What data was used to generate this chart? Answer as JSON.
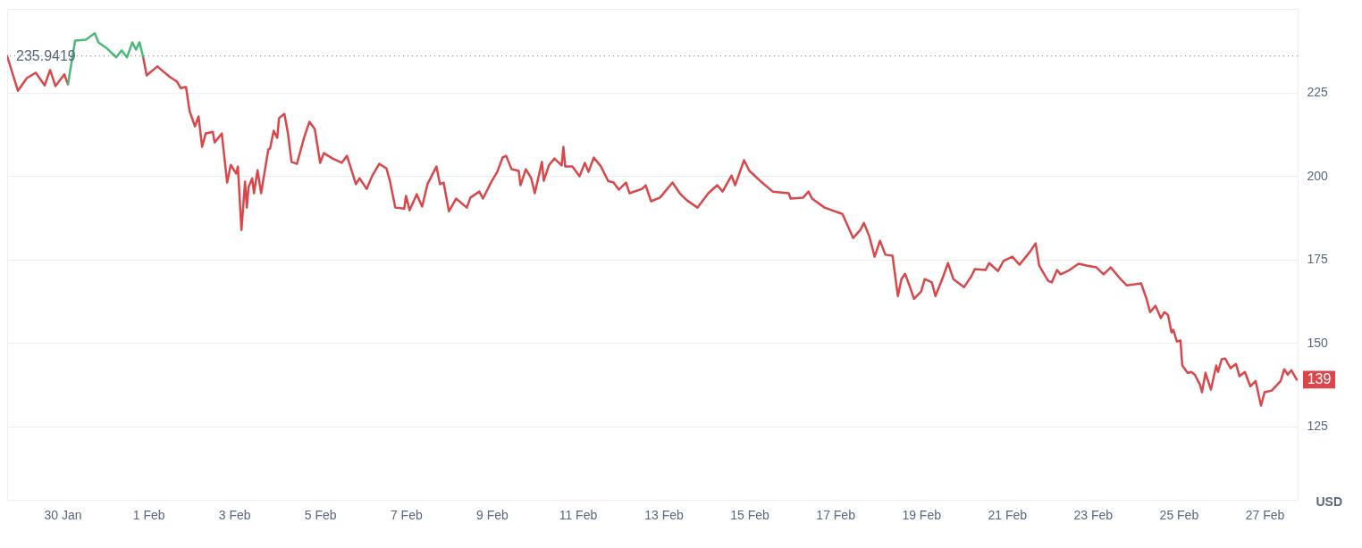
{
  "chart_data": {
    "type": "line",
    "ylabel": "USD",
    "x": [
      "--01-28T17:00",
      "--01-28T23:00",
      "--01-29T04:00",
      "--01-29T09:00",
      "--01-29T14:00",
      "--01-29T17:00",
      "--01-29T20:00",
      "--01-30T01:00",
      "--01-30T03:00",
      "--01-30T07:00",
      "--01-30T13:00",
      "--01-30T18:00",
      "--01-30T20:00",
      "--01-31T01:00",
      "--01-31T06:00",
      "--01-31T09:00",
      "--01-31T12:00",
      "--01-31T15:00",
      "--01-31T17:00",
      "--01-31T19:00",
      "--01-31T21:00",
      "--01-31T23:00",
      "--02-01T05:00",
      "--02-01T08:00",
      "--02-01T12:00",
      "--02-01T16:00",
      "--02-01T18:00",
      "--02-01T21:00",
      "--02-01T23:00",
      "--02-02T02:00",
      "--02-02T04:00",
      "--02-02T06:00",
      "--02-02T08:00",
      "--02-02T12:00",
      "--02-02T13:00",
      "--02-02T17:00",
      "--02-02T20:00",
      "--02-02T22:00",
      "--02-03T01:00",
      "--02-03T02:00",
      "--02-03T04:00",
      "--02-03T06:00",
      "--02-03T07:00",
      "--02-03T08:00",
      "--02-03T10:00",
      "--02-03T11:00",
      "--02-03T13:00",
      "--02-03T15:00",
      "--02-03T19:00",
      "--02-03T20:00",
      "--02-03T22:00",
      "--02-04T00:00",
      "--02-04T01:00",
      "--02-04T04:00",
      "--02-04T06:00",
      "--02-04T08:00",
      "--02-04T11:00",
      "--02-04T15:00",
      "--02-04T18:00",
      "--02-04T21:00",
      "--02-05T00:00",
      "--02-05T02:00",
      "--02-05T07:00",
      "--02-05T12:00",
      "--02-05T15:00",
      "--02-05T20:00",
      "--02-05T22:00",
      "--02-06T02:00",
      "--02-06T05:00",
      "--02-06T09:00",
      "--02-06T13:00",
      "--02-06T15:00",
      "--02-06T18:00",
      "--02-06T23:00",
      "--02-07T00:00",
      "--02-07T02:00",
      "--02-07T06:00",
      "--02-07T09:00",
      "--02-07T12:00",
      "--02-07T17:00",
      "--02-07T19:00",
      "--02-07T21:00",
      "--02-08T00:00",
      "--02-08T04:00",
      "--02-08T10:00",
      "--02-08T12:00",
      "--02-08T17:00",
      "--02-08T19:00",
      "--02-09T00:00",
      "--02-09T03:00",
      "--02-09T06:00",
      "--02-09T08:00",
      "--02-09T11:00",
      "--02-09T15:00",
      "--02-09T16:00",
      "--02-09T19:00",
      "--02-09T22:00",
      "--02-10T00:00",
      "--02-10T04:00",
      "--02-10T05:00",
      "--02-10T08:00",
      "--02-10T11:00",
      "--02-10T15:00",
      "--02-10T16:00",
      "--02-10T17:00",
      "--02-10T21:00",
      "--02-11T01:00",
      "--02-11T04:00",
      "--02-11T06:00",
      "--02-11T09:00",
      "--02-11T13:00",
      "--02-11T17:00",
      "--02-11T20:00",
      "--02-11T23:00",
      "--02-12T03:00",
      "--02-12T05:00",
      "--02-12T12:00",
      "--02-12T14:00",
      "--02-12T17:00",
      "--02-12T22:00",
      "--02-13T05:00",
      "--02-13T09:00",
      "--02-13T13:00",
      "--02-13T19:00",
      "--02-14T01:00",
      "--02-14T06:00",
      "--02-14T09:00",
      "--02-14T14:00",
      "--02-14T16:00",
      "--02-14T21:00",
      "--02-15T00:00",
      "--02-15T06:00",
      "--02-15T13:00",
      "--02-15T22:00",
      "--02-15T23:00",
      "--02-16T06:00",
      "--02-16T09:00",
      "--02-16T11:00",
      "--02-16T18:00",
      "--02-17T04:00",
      "--02-17T08:00",
      "--02-17T10:00",
      "--02-17T14:00",
      "--02-17T16:00",
      "--02-17T19:00",
      "--02-17T22:00",
      "--02-18T01:00",
      "--02-18T04:00",
      "--02-18T08:00",
      "--02-18T11:00",
      "--02-18T13:00",
      "--02-18T15:00",
      "--02-18T18:00",
      "--02-18T20:00",
      "--02-19T00:00",
      "--02-19T02:00",
      "--02-19T06:00",
      "--02-19T08:00",
      "--02-19T12:00",
      "--02-19T15:00",
      "--02-19T18:00",
      "--02-20T00:00",
      "--02-20T04:00",
      "--02-20T06:00",
      "--02-20T12:00",
      "--02-20T14:00",
      "--02-20T19:00",
      "--02-20T22:00",
      "--02-21T03:00",
      "--02-21T07:00",
      "--02-21T13:00",
      "--02-21T16:00",
      "--02-21T18:00",
      "--02-21T23:00",
      "--02-22T01:00",
      "--02-22T04:00",
      "--02-22T06:00",
      "--02-22T11:00",
      "--02-22T16:00",
      "--02-22T21:00",
      "--02-23T02:00",
      "--02-23T06:00",
      "--02-23T10:00",
      "--02-23T15:00",
      "--02-23T19:00",
      "--02-24T03:00",
      "--02-24T06:00",
      "--02-24T08:00",
      "--02-24T11:00",
      "--02-24T14:00",
      "--02-24T16:00",
      "--02-24T18:00",
      "--02-24T20:00",
      "--02-24T21:00",
      "--02-24T23:00",
      "--02-25T01:00",
      "--02-25T02:00",
      "--02-25T05:00",
      "--02-25T07:00",
      "--02-25T09:00",
      "--02-25T12:00",
      "--02-25T13:00",
      "--02-25T15:00",
      "--02-25T18:00",
      "--02-25T21:00",
      "--02-25T22:00",
      "--02-26T00:00",
      "--02-26T02:00",
      "--02-26T05:00",
      "--02-26T08:00",
      "--02-26T10:00",
      "--02-26T13:00",
      "--02-26T16:00",
      "--02-26T19:00",
      "--02-26T22:00",
      "--02-27T00:00",
      "--02-27T04:00",
      "--02-27T09:00",
      "--02-27T11:00",
      "--02-27T13:00",
      "--02-27T15:00",
      "--02-27T18:00"
    ],
    "series": [
      {
        "color": "#d9474b",
        "values": [
          235.9,
          225.5,
          229.3,
          230.9,
          227.1,
          231.7,
          226.9,
          230.4,
          227.4,
          null,
          null,
          null,
          null,
          null,
          null,
          null,
          null,
          null,
          null,
          null,
          235.7,
          230.1,
          232.8,
          231.4,
          229.6,
          228.2,
          226.3,
          226.6,
          219.4,
          214.8,
          217.8,
          208.7,
          212.7,
          213.2,
          210.0,
          212.7,
          198.0,
          203.3,
          200.7,
          202.8,
          183.8,
          198.3,
          190.5,
          196.7,
          199.3,
          194.8,
          201.7,
          194.8,
          207.9,
          208.2,
          213.5,
          211.4,
          217.3,
          218.6,
          212.7,
          204.2,
          203.6,
          211.4,
          216.2,
          214.0,
          203.9,
          206.8,
          205.2,
          203.9,
          206.0,
          197.5,
          199.3,
          196.1,
          199.9,
          203.6,
          202.3,
          198.5,
          190.5,
          190.2,
          194.0,
          189.7,
          194.5,
          190.8,
          197.5,
          202.8,
          197.5,
          198.0,
          189.4,
          193.2,
          190.5,
          193.5,
          195.3,
          193.2,
          198.5,
          201.2,
          205.5,
          206.0,
          202.0,
          201.5,
          197.2,
          202.0,
          199.3,
          194.8,
          204.2,
          198.5,
          203.3,
          205.2,
          203.1,
          208.7,
          202.8,
          202.8,
          199.9,
          203.9,
          201.2,
          205.5,
          202.8,
          198.5,
          198.0,
          195.9,
          198.0,
          194.8,
          196.1,
          197.2,
          192.4,
          193.5,
          198.0,
          194.8,
          192.7,
          190.5,
          194.8,
          197.2,
          195.3,
          200.1,
          197.2,
          204.7,
          201.5,
          198.5,
          195.3,
          194.8,
          193.2,
          193.5,
          195.3,
          193.2,
          190.5,
          188.6,
          183.8,
          181.4,
          183.8,
          185.9,
          181.9,
          175.8,
          180.6,
          176.4,
          176.1,
          164.0,
          169.1,
          170.7,
          166.4,
          163.2,
          165.4,
          169.1,
          168.1,
          164.0,
          169.4,
          173.9,
          169.1,
          166.7,
          169.9,
          172.1,
          171.8,
          173.9,
          171.5,
          174.5,
          175.8,
          173.4,
          177.4,
          179.8,
          173.1,
          168.6,
          168.1,
          171.8,
          170.5,
          171.8,
          173.7,
          173.1,
          172.6,
          170.5,
          172.6,
          169.4,
          167.2,
          167.8,
          163.2,
          159.2,
          161.1,
          157.4,
          159.2,
          158.4,
          153.1,
          153.9,
          150.4,
          150.7,
          143.2,
          141.0,
          141.3,
          140.5,
          137.3,
          135.2,
          141.0,
          136.0,
          143.2,
          141.3,
          145.1,
          145.3,
          142.4,
          143.7,
          140.0,
          141.3,
          137.0,
          138.6,
          131.2,
          135.2,
          135.7,
          138.6,
          142.1,
          140.5,
          141.8,
          139
        ]
      },
      {
        "color": "#4cb979",
        "values": [
          null,
          null,
          null,
          null,
          null,
          null,
          null,
          null,
          227.4,
          240.5,
          240.8,
          242.7,
          240.0,
          238.1,
          235.5,
          237.6,
          235.5,
          240.0,
          237.8,
          240.0,
          235.7,
          null,
          null,
          null,
          null,
          null,
          null,
          null,
          null,
          null,
          null,
          null,
          null,
          null,
          null,
          null,
          null,
          null,
          null,
          null,
          null,
          null,
          null,
          null,
          null,
          null,
          null,
          null,
          null,
          null,
          null,
          null,
          null,
          null,
          null,
          null,
          null,
          null,
          null,
          null,
          null,
          null,
          null,
          null,
          null,
          null,
          null,
          null,
          null,
          null,
          null,
          null,
          null,
          null,
          null,
          null,
          null,
          null,
          null,
          null,
          null,
          null,
          null,
          null,
          null,
          null,
          null,
          null,
          null,
          null,
          null,
          null,
          null,
          null,
          null,
          null,
          null,
          null,
          null,
          null,
          null,
          null,
          null,
          null,
          null,
          null,
          null,
          null,
          null,
          null,
          null,
          null,
          null,
          null,
          null,
          null,
          null,
          null,
          null,
          null,
          null,
          null,
          null,
          null,
          null,
          null,
          null,
          null,
          null,
          null,
          null,
          null,
          null,
          null,
          null,
          null,
          null,
          null,
          null,
          null,
          null,
          null,
          null,
          null,
          null,
          null,
          null,
          null,
          null,
          null,
          null,
          null,
          null,
          null,
          null,
          null,
          null,
          null,
          null,
          null,
          null,
          null,
          null,
          null,
          null,
          null,
          null,
          null,
          null,
          null,
          null,
          null,
          null,
          null,
          null,
          null,
          null,
          null,
          null,
          null,
          null,
          null,
          null,
          null,
          null,
          null,
          null,
          null,
          null,
          null,
          null,
          null,
          null,
          null,
          null,
          null,
          null,
          null,
          null,
          null,
          null,
          null,
          null,
          null,
          null,
          null,
          null,
          null,
          null,
          null,
          null,
          null,
          null,
          null,
          null,
          null,
          null,
          null,
          null,
          null,
          null,
          null
        ]
      }
    ],
    "xlim": [
      "--01-28T17:00",
      "--02-27T18:30"
    ],
    "xticks": [
      {
        "value": "--01-30",
        "label": "30 Jan"
      },
      {
        "value": "--02-01",
        "label": "1 Feb"
      },
      {
        "value": "--02-03",
        "label": "3 Feb"
      },
      {
        "value": "--02-05",
        "label": "5 Feb"
      },
      {
        "value": "--02-07",
        "label": "7 Feb"
      },
      {
        "value": "--02-09",
        "label": "9 Feb"
      },
      {
        "value": "--02-11",
        "label": "11 Feb"
      },
      {
        "value": "--02-13",
        "label": "13 Feb"
      },
      {
        "value": "--02-15",
        "label": "15 Feb"
      },
      {
        "value": "--02-17",
        "label": "17 Feb"
      },
      {
        "value": "--02-19",
        "label": "19 Feb"
      },
      {
        "value": "--02-21",
        "label": "21 Feb"
      },
      {
        "value": "--02-23",
        "label": "23 Feb"
      },
      {
        "value": "--02-25",
        "label": "25 Feb"
      },
      {
        "value": "--02-27",
        "label": "27 Feb"
      }
    ],
    "ylim": [
      103,
      250
    ],
    "yticks": [
      125,
      150,
      175,
      200,
      225
    ],
    "grid": "y",
    "ref_lines": [
      {
        "axis": "y",
        "value": 235.9419,
        "label": "235.9419",
        "line_style": "dotted",
        "color": "#999999"
      }
    ],
    "annotations": [
      {
        "text": "139",
        "x": "--02-27T18:00",
        "y": 139
      }
    ]
  }
}
